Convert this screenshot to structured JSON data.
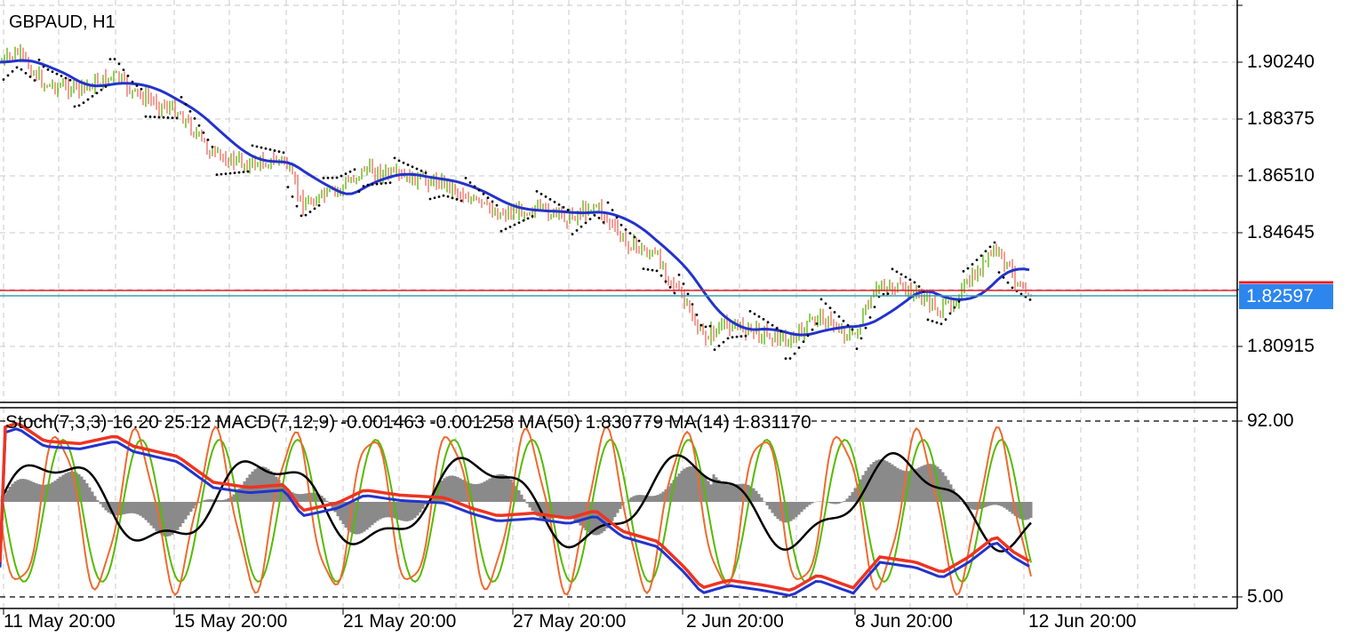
{
  "symbol_title": "GBPAUD, H1",
  "current_price": "1.82597",
  "indicator_header": "Stoch(7,3,3) 16.20 25.12 MACD(7,12,9) -0.001463 -0.001258 MA(50) 1.830779 MA(14) 1.831170",
  "price_axis": [
    "1.90240",
    "1.88375",
    "1.86510",
    "1.84645",
    "1.80915"
  ],
  "indicator_axis": [
    "92.00",
    "5.00"
  ],
  "time_axis": [
    "11 May 20:00",
    "15 May 20:00",
    "21 May 20:00",
    "27 May 20:00",
    "2 Jun 20:00",
    "8 Jun 20:00",
    "12 Jun 20:00"
  ],
  "colors": {
    "bull_candle": "#59b300",
    "bear_candle": "#ee6a5e",
    "moving_average": "#2233cc",
    "price_line": "#e0202a",
    "bid_line": "#3aa0b0",
    "stoch_main": "#ee6a30",
    "stoch_signal": "#55bb00",
    "macd_hist": "#8a8a8a",
    "ma50": "#2233cc",
    "ma14": "#ee3322",
    "price_tag_bg": "#2c86ee"
  }
}
